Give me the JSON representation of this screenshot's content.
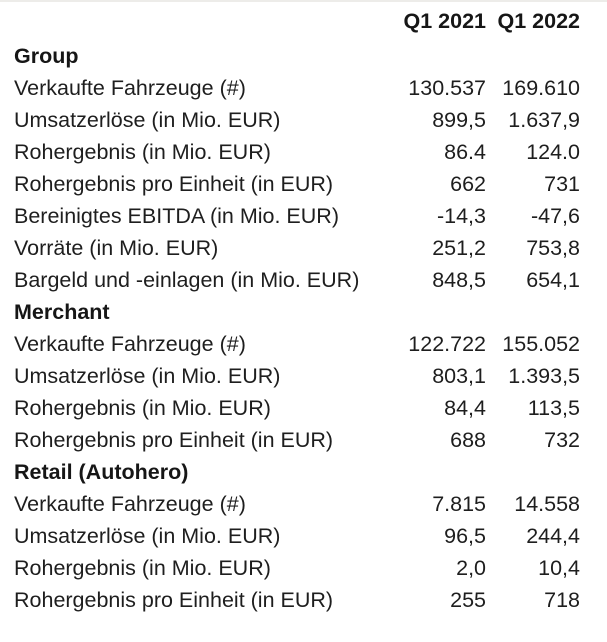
{
  "table": {
    "columns": [
      "",
      "Q1 2021",
      "Q1 2022"
    ],
    "sections": [
      {
        "title": "Group",
        "rows": [
          {
            "label": "Verkaufte Fahrzeuge (#)",
            "q1_2021": "130.537",
            "q1_2022": "169.610"
          },
          {
            "label": "Umsatzerlöse (in Mio. EUR)",
            "q1_2021": "899,5",
            "q1_2022": "1.637,9"
          },
          {
            "label": "Rohergebnis (in Mio. EUR)",
            "q1_2021": "86.4",
            "q1_2022": "124.0"
          },
          {
            "label": "Rohergebnis pro Einheit (in EUR)",
            "q1_2021": "662",
            "q1_2022": "731"
          },
          {
            "label": "Bereinigtes EBITDA (in Mio. EUR)",
            "q1_2021": "-14,3",
            "q1_2022": "-47,6"
          },
          {
            "label": "Vorräte (in Mio. EUR)",
            "q1_2021": "251,2",
            "q1_2022": "753,8"
          },
          {
            "label": "Bargeld und -einlagen (in Mio. EUR)",
            "q1_2021": "848,5",
            "q1_2022": "654,1"
          }
        ]
      },
      {
        "title": "Merchant",
        "rows": [
          {
            "label": "Verkaufte Fahrzeuge (#)",
            "q1_2021": "122.722",
            "q1_2022": "155.052"
          },
          {
            "label": "Umsatzerlöse (in Mio. EUR)",
            "q1_2021": "803,1",
            "q1_2022": "1.393,5"
          },
          {
            "label": "Rohergebnis (in Mio. EUR)",
            "q1_2021": "84,4",
            "q1_2022": "113,5"
          },
          {
            "label": "Rohergebnis pro Einheit (in EUR)",
            "q1_2021": "688",
            "q1_2022": "732"
          }
        ]
      },
      {
        "title": "Retail (Autohero)",
        "rows": [
          {
            "label": "Verkaufte Fahrzeuge (#)",
            "q1_2021": "7.815",
            "q1_2022": "14.558"
          },
          {
            "label": "Umsatzerlöse (in Mio. EUR)",
            "q1_2021": "96,5",
            "q1_2022": "244,4"
          },
          {
            "label": "Rohergebnis (in Mio. EUR)",
            "q1_2021": "2,0",
            "q1_2022": "10,4"
          },
          {
            "label": "Rohergebnis pro Einheit (in EUR)",
            "q1_2021": "255",
            "q1_2022": "718"
          }
        ]
      }
    ]
  }
}
